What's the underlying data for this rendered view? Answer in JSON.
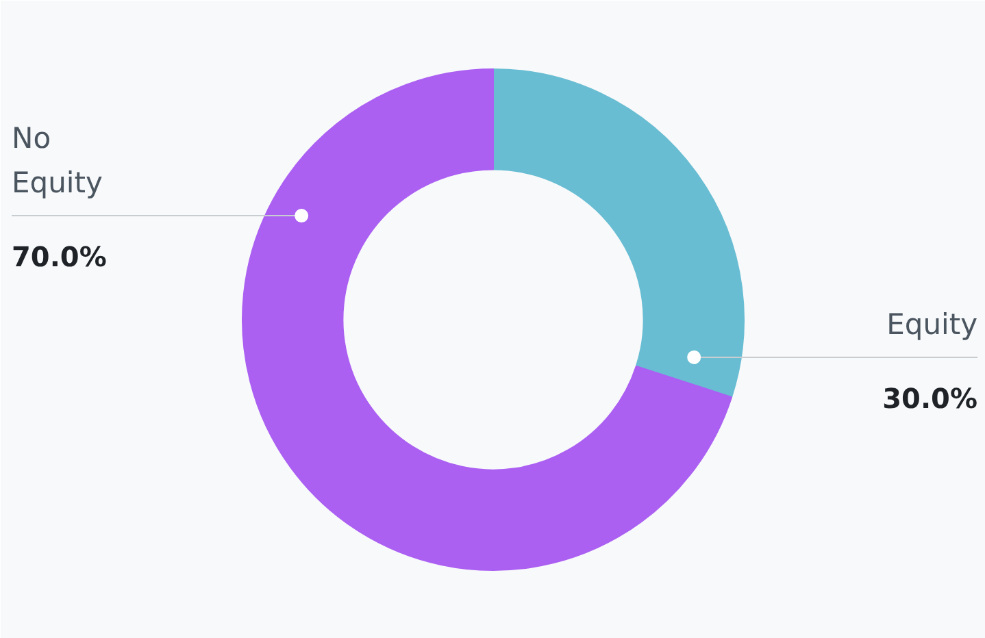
{
  "chart_data": {
    "type": "donut",
    "categories": [
      "Equity",
      "No\nEquity"
    ],
    "values": [
      30.0,
      70.0
    ],
    "colors": [
      "#68bdd3",
      "#ab60f2"
    ],
    "value_labels": [
      "30.0%",
      "70.0%"
    ]
  }
}
